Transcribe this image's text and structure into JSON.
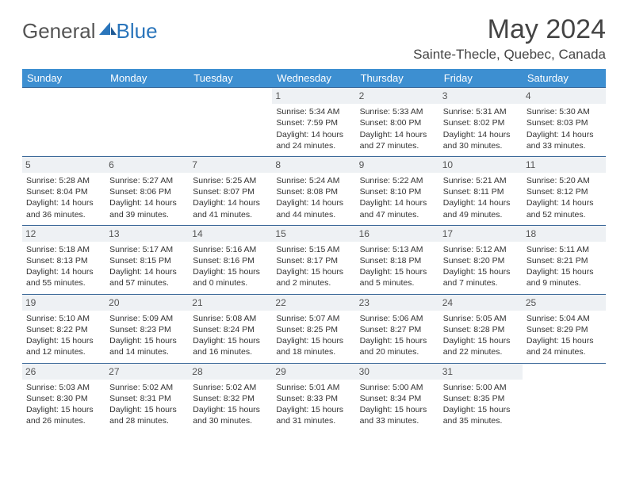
{
  "logo": {
    "text1": "General",
    "text2": "Blue"
  },
  "title": "May 2024",
  "location": "Sainte-Thecle, Quebec, Canada",
  "colors": {
    "header_bg": "#3d8fd1",
    "header_text": "#ffffff",
    "row_border": "#3d6a9a",
    "daynum_bg": "#eef1f4",
    "daynum_text": "#555555",
    "body_text": "#333333",
    "logo_general": "#555555",
    "logo_blue": "#2a75bb",
    "title_color": "#444444"
  },
  "typography": {
    "title_fontsize": 34,
    "location_fontsize": 17,
    "dow_fontsize": 13,
    "daynum_fontsize": 12,
    "cell_fontsize": 10.5
  },
  "dow": [
    "Sunday",
    "Monday",
    "Tuesday",
    "Wednesday",
    "Thursday",
    "Friday",
    "Saturday"
  ],
  "weeks": [
    [
      null,
      null,
      null,
      {
        "n": "1",
        "sr": "5:34 AM",
        "ss": "7:59 PM",
        "dl": "14 hours and 24 minutes."
      },
      {
        "n": "2",
        "sr": "5:33 AM",
        "ss": "8:00 PM",
        "dl": "14 hours and 27 minutes."
      },
      {
        "n": "3",
        "sr": "5:31 AM",
        "ss": "8:02 PM",
        "dl": "14 hours and 30 minutes."
      },
      {
        "n": "4",
        "sr": "5:30 AM",
        "ss": "8:03 PM",
        "dl": "14 hours and 33 minutes."
      }
    ],
    [
      {
        "n": "5",
        "sr": "5:28 AM",
        "ss": "8:04 PM",
        "dl": "14 hours and 36 minutes."
      },
      {
        "n": "6",
        "sr": "5:27 AM",
        "ss": "8:06 PM",
        "dl": "14 hours and 39 minutes."
      },
      {
        "n": "7",
        "sr": "5:25 AM",
        "ss": "8:07 PM",
        "dl": "14 hours and 41 minutes."
      },
      {
        "n": "8",
        "sr": "5:24 AM",
        "ss": "8:08 PM",
        "dl": "14 hours and 44 minutes."
      },
      {
        "n": "9",
        "sr": "5:22 AM",
        "ss": "8:10 PM",
        "dl": "14 hours and 47 minutes."
      },
      {
        "n": "10",
        "sr": "5:21 AM",
        "ss": "8:11 PM",
        "dl": "14 hours and 49 minutes."
      },
      {
        "n": "11",
        "sr": "5:20 AM",
        "ss": "8:12 PM",
        "dl": "14 hours and 52 minutes."
      }
    ],
    [
      {
        "n": "12",
        "sr": "5:18 AM",
        "ss": "8:13 PM",
        "dl": "14 hours and 55 minutes."
      },
      {
        "n": "13",
        "sr": "5:17 AM",
        "ss": "8:15 PM",
        "dl": "14 hours and 57 minutes."
      },
      {
        "n": "14",
        "sr": "5:16 AM",
        "ss": "8:16 PM",
        "dl": "15 hours and 0 minutes."
      },
      {
        "n": "15",
        "sr": "5:15 AM",
        "ss": "8:17 PM",
        "dl": "15 hours and 2 minutes."
      },
      {
        "n": "16",
        "sr": "5:13 AM",
        "ss": "8:18 PM",
        "dl": "15 hours and 5 minutes."
      },
      {
        "n": "17",
        "sr": "5:12 AM",
        "ss": "8:20 PM",
        "dl": "15 hours and 7 minutes."
      },
      {
        "n": "18",
        "sr": "5:11 AM",
        "ss": "8:21 PM",
        "dl": "15 hours and 9 minutes."
      }
    ],
    [
      {
        "n": "19",
        "sr": "5:10 AM",
        "ss": "8:22 PM",
        "dl": "15 hours and 12 minutes."
      },
      {
        "n": "20",
        "sr": "5:09 AM",
        "ss": "8:23 PM",
        "dl": "15 hours and 14 minutes."
      },
      {
        "n": "21",
        "sr": "5:08 AM",
        "ss": "8:24 PM",
        "dl": "15 hours and 16 minutes."
      },
      {
        "n": "22",
        "sr": "5:07 AM",
        "ss": "8:25 PM",
        "dl": "15 hours and 18 minutes."
      },
      {
        "n": "23",
        "sr": "5:06 AM",
        "ss": "8:27 PM",
        "dl": "15 hours and 20 minutes."
      },
      {
        "n": "24",
        "sr": "5:05 AM",
        "ss": "8:28 PM",
        "dl": "15 hours and 22 minutes."
      },
      {
        "n": "25",
        "sr": "5:04 AM",
        "ss": "8:29 PM",
        "dl": "15 hours and 24 minutes."
      }
    ],
    [
      {
        "n": "26",
        "sr": "5:03 AM",
        "ss": "8:30 PM",
        "dl": "15 hours and 26 minutes."
      },
      {
        "n": "27",
        "sr": "5:02 AM",
        "ss": "8:31 PM",
        "dl": "15 hours and 28 minutes."
      },
      {
        "n": "28",
        "sr": "5:02 AM",
        "ss": "8:32 PM",
        "dl": "15 hours and 30 minutes."
      },
      {
        "n": "29",
        "sr": "5:01 AM",
        "ss": "8:33 PM",
        "dl": "15 hours and 31 minutes."
      },
      {
        "n": "30",
        "sr": "5:00 AM",
        "ss": "8:34 PM",
        "dl": "15 hours and 33 minutes."
      },
      {
        "n": "31",
        "sr": "5:00 AM",
        "ss": "8:35 PM",
        "dl": "15 hours and 35 minutes."
      },
      null
    ]
  ],
  "labels": {
    "sunrise": "Sunrise:",
    "sunset": "Sunset:",
    "daylight": "Daylight:"
  }
}
